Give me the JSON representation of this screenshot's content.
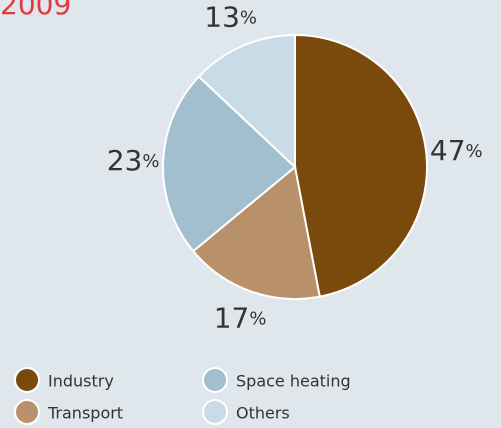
{
  "chart_data": {
    "type": "pie",
    "title": "2009",
    "categories": [
      "Industry",
      "Transport",
      "Space heating",
      "Others"
    ],
    "values": [
      47,
      17,
      23,
      13
    ],
    "value_labels": [
      "47%",
      "17%",
      "23%",
      "13%"
    ],
    "colors": [
      "#7a4a0c",
      "#b8916b",
      "#a2bfd0",
      "#c9dbe6"
    ]
  }
}
